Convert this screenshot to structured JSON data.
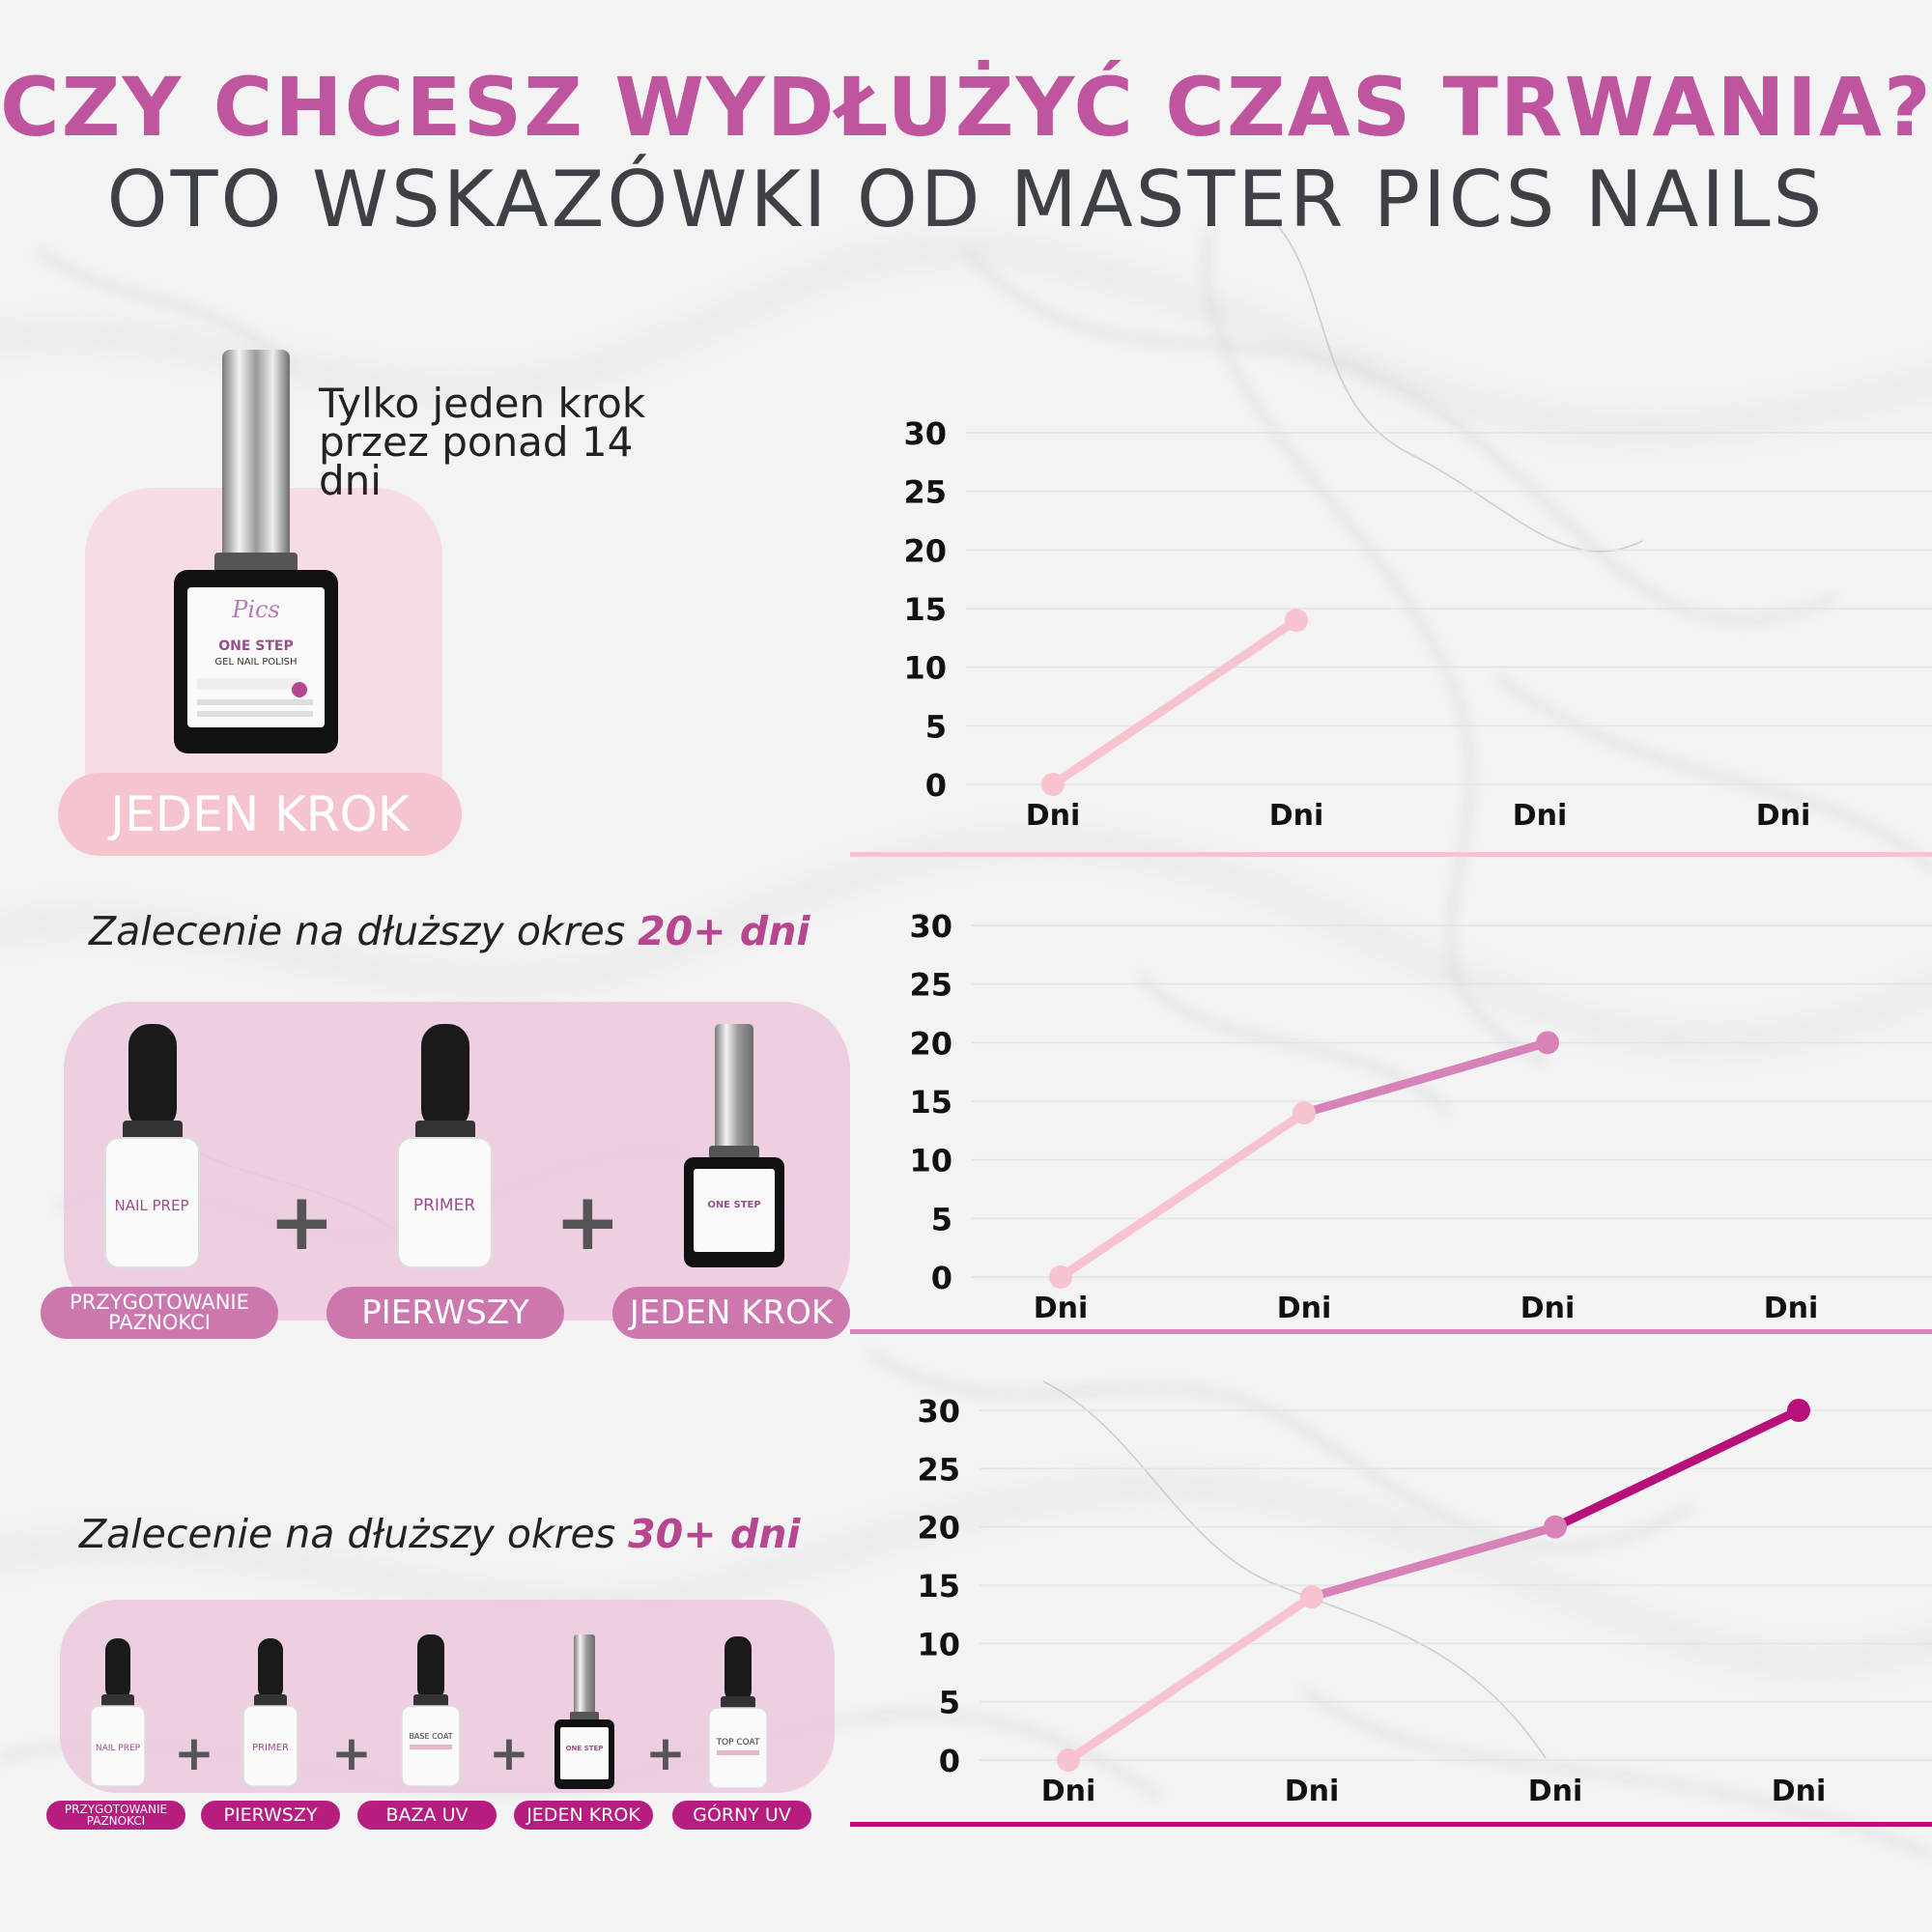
{
  "header": {
    "title": "CZY CHCESZ WYDŁUŻYĆ CZAS TRWANIA?",
    "subtitle": "OTO WSKAZÓWKI OD MASTER PICS NAILS"
  },
  "sections": [
    {
      "tagline": "Tylko jeden krok przez ponad 14 dni",
      "products": [
        {
          "pill": "JEDEN KROK",
          "brand": "Pics",
          "name": "ONE STEP",
          "sub": "GEL NAIL POLISH"
        }
      ]
    },
    {
      "recommendation": {
        "prefix": "Zalecenie na dłuższy okres ",
        "highlight": "20+ dni"
      },
      "products": [
        {
          "pill": "PRZYGOTOWANIE PAZNOKCI",
          "name": "NAIL PREP"
        },
        {
          "pill": "PIERWSZY",
          "name": "PRIMER"
        },
        {
          "pill": "JEDEN KROK",
          "name": "ONE STEP"
        }
      ]
    },
    {
      "recommendation": {
        "prefix": "Zalecenie na dłuższy okres ",
        "highlight": "30+ dni"
      },
      "products": [
        {
          "pill": "PRZYGOTOWANIE PAZNOKCI",
          "name": "NAIL PREP"
        },
        {
          "pill": "PIERWSZY",
          "name": "PRIMER"
        },
        {
          "pill": "BAZA UV",
          "name": "BASE COAT"
        },
        {
          "pill": "JEDEN KROK",
          "name": "ONE STEP"
        },
        {
          "pill": "GÓRNY UV",
          "name": "TOP COAT"
        }
      ]
    }
  ],
  "plus_sign": "+",
  "colors": {
    "light_pink": "#f6c3cf",
    "mid_pink": "#d782b8",
    "magenta": "#b8107a",
    "title_pink": "#c0559f",
    "pill_pink_light": "#f5c4cf",
    "pill_pink_mid": "#cc78ae",
    "pill_magenta": "#b71c80"
  },
  "chart_data": [
    {
      "type": "line",
      "categories": [
        "Dni",
        "Dni",
        "Dni",
        "Dni"
      ],
      "yticks": [
        "0",
        "5",
        "10",
        "15",
        "20",
        "25",
        "30"
      ],
      "ylim": [
        0,
        30
      ],
      "grid": true,
      "points": [
        {
          "x": 0,
          "y": 0
        },
        {
          "x": 1,
          "y": 14
        }
      ]
    },
    {
      "type": "line",
      "categories": [
        "Dni",
        "Dni",
        "Dni",
        "Dni"
      ],
      "yticks": [
        "0",
        "5",
        "10",
        "15",
        "20",
        "25",
        "30"
      ],
      "ylim": [
        0,
        30
      ],
      "grid": true,
      "points": [
        {
          "x": 0,
          "y": 0
        },
        {
          "x": 1,
          "y": 14
        },
        {
          "x": 2,
          "y": 20
        }
      ]
    },
    {
      "type": "line",
      "categories": [
        "Dni",
        "Dni",
        "Dni",
        "Dni"
      ],
      "yticks": [
        "0",
        "5",
        "10",
        "15",
        "20",
        "25",
        "30"
      ],
      "ylim": [
        0,
        30
      ],
      "grid": true,
      "points": [
        {
          "x": 0,
          "y": 0
        },
        {
          "x": 1,
          "y": 14
        },
        {
          "x": 2,
          "y": 20
        },
        {
          "x": 3,
          "y": 30
        }
      ]
    }
  ]
}
